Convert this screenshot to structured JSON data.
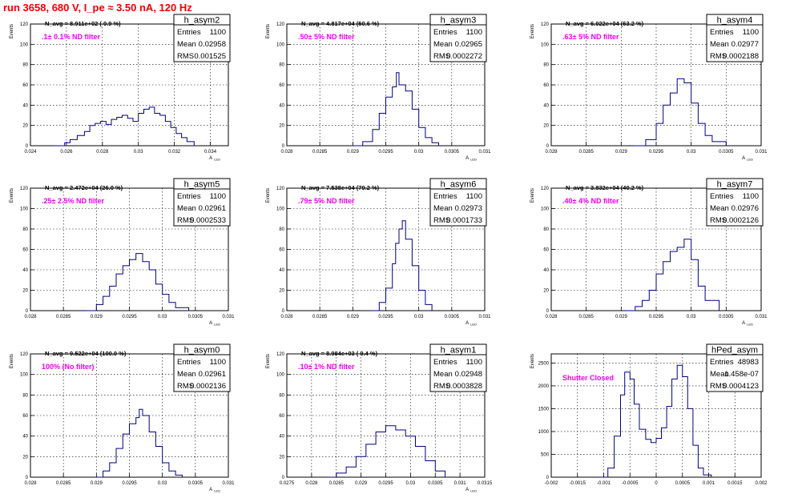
{
  "run_title": "run 3658,   680 V, I_pe ≈ 3.50 nA, 120 Hz",
  "stat_labels": {
    "entries": "Entries",
    "mean": "Mean",
    "rms": "RMS"
  },
  "chart_data": [
    {
      "type": "bar",
      "name": "h_asym2",
      "nline": "N_avg = 8.911e+02 ( 0.9 %)",
      "filter": ".1± 0.1% ND filter",
      "entries": "1100",
      "mean": "0.02958",
      "rms": "0.001525",
      "xlabel": "A_LED",
      "ylabel": "Events",
      "xlim": [
        0.024,
        0.035
      ],
      "ylim": [
        0,
        120
      ],
      "xticks": [
        0.024,
        0.026,
        0.028,
        0.03,
        0.032,
        0.034
      ],
      "xticklabels": [
        "0.024",
        "0.026",
        "0.028",
        "0.03",
        "0.032",
        "0.034"
      ],
      "yticks": [
        0,
        20,
        40,
        60,
        80,
        100,
        120
      ],
      "yticklabels": [
        "0",
        "20",
        "40",
        "60",
        "80",
        "100",
        "120"
      ],
      "x_points": [
        0.0253,
        0.0259,
        0.0262,
        0.0266,
        0.027,
        0.0273,
        0.0276,
        0.0279,
        0.0282,
        0.0285,
        0.0288,
        0.0291,
        0.0294,
        0.0297,
        0.03,
        0.0303,
        0.0306,
        0.0309,
        0.0312,
        0.0315,
        0.0318,
        0.0321,
        0.0324,
        0.0327,
        0.0331
      ],
      "y_points": [
        0,
        3,
        6,
        10,
        14,
        20,
        22,
        24,
        21,
        26,
        28,
        30,
        27,
        24,
        32,
        36,
        38,
        32,
        30,
        24,
        18,
        12,
        8,
        4,
        0
      ]
    },
    {
      "type": "bar",
      "name": "h_asym3",
      "nline": "N_avg = 4.817e+04 (50.6 %)",
      "filter": ".50± 5% ND filter",
      "entries": "1100",
      "mean": "0.02965",
      "rms": "0.0002272",
      "xlabel": "A_LED",
      "ylabel": "Events",
      "xlim": [
        0.028,
        0.031
      ],
      "ylim": [
        0,
        120
      ],
      "xticks": [
        0.028,
        0.0285,
        0.029,
        0.0295,
        0.03,
        0.0305,
        0.031
      ],
      "xticklabels": [
        "0.028",
        "0.0285",
        "0.029",
        "0.0295",
        "0.03",
        "0.0305",
        "0.031"
      ],
      "yticks": [
        0,
        20,
        40,
        60,
        80,
        100,
        120
      ],
      "yticklabels": [
        "0",
        "20",
        "40",
        "60",
        "80",
        "100",
        "120"
      ],
      "x_points": [
        0.02898,
        0.02915,
        0.0293,
        0.0294,
        0.0295,
        0.0296,
        0.02966,
        0.0297,
        0.0298,
        0.0299,
        0.03,
        0.0301,
        0.0302,
        0.0303
      ],
      "y_points": [
        0,
        4,
        16,
        32,
        48,
        58,
        72,
        60,
        54,
        36,
        18,
        8,
        3,
        0
      ]
    },
    {
      "type": "bar",
      "name": "h_asym4",
      "nline": "N_avg = 6.022e+04 (63.2 %)",
      "filter": ".63± 5% ND filter",
      "entries": "1100",
      "mean": "0.02977",
      "rms": "0.0002188",
      "xlabel": "A_LED",
      "ylabel": "Events",
      "xlim": [
        0.028,
        0.031
      ],
      "ylim": [
        0,
        120
      ],
      "xticks": [
        0.028,
        0.0285,
        0.029,
        0.0295,
        0.03,
        0.0305,
        0.031
      ],
      "xticklabels": [
        "0.028",
        "0.0285",
        "0.029",
        "0.0295",
        "0.03",
        "0.0305",
        "0.031"
      ],
      "yticks": [
        0,
        20,
        40,
        60,
        80,
        100,
        120
      ],
      "yticklabels": [
        "0",
        "20",
        "40",
        "60",
        "80",
        "100",
        "120"
      ],
      "x_points": [
        0.02918,
        0.02935,
        0.0295,
        0.0296,
        0.0297,
        0.0298,
        0.0299,
        0.03,
        0.0301,
        0.0302,
        0.0303,
        0.0305
      ],
      "y_points": [
        0,
        6,
        22,
        40,
        52,
        66,
        62,
        42,
        22,
        10,
        4,
        0
      ]
    },
    {
      "type": "bar",
      "name": "h_asym5",
      "nline": "N_avg = 2.472e+04 (26.0 %)",
      "filter": ".25± 2.5% ND filter",
      "entries": "1100",
      "mean": "0.02961",
      "rms": "0.0002533",
      "xlabel": "A_LED",
      "ylabel": "Events",
      "xlim": [
        0.028,
        0.031
      ],
      "ylim": [
        0,
        120
      ],
      "xticks": [
        0.028,
        0.0285,
        0.029,
        0.0295,
        0.03,
        0.0305,
        0.031
      ],
      "xticklabels": [
        "0.028",
        "0.0285",
        "0.029",
        "0.0295",
        "0.03",
        "0.0305",
        "0.031"
      ],
      "yticks": [
        0,
        20,
        40,
        60,
        80,
        100,
        120
      ],
      "yticklabels": [
        "0",
        "20",
        "40",
        "60",
        "80",
        "100",
        "120"
      ],
      "x_points": [
        0.02885,
        0.029,
        0.0291,
        0.0292,
        0.0293,
        0.0294,
        0.0295,
        0.0296,
        0.0297,
        0.0298,
        0.0299,
        0.03,
        0.0301,
        0.0302,
        0.0304
      ],
      "y_points": [
        0,
        6,
        14,
        24,
        36,
        44,
        50,
        56,
        48,
        40,
        26,
        16,
        8,
        3,
        0
      ]
    },
    {
      "type": "bar",
      "name": "h_asym6",
      "nline": "N_avg = 7.538e+04 (79.2 %)",
      "filter": ".79± 5% ND filter",
      "entries": "1100",
      "mean": "0.02973",
      "rms": "0.0001733",
      "xlabel": "A_LED",
      "ylabel": "Events",
      "xlim": [
        0.028,
        0.031
      ],
      "ylim": [
        0,
        120
      ],
      "xticks": [
        0.028,
        0.0285,
        0.029,
        0.0295,
        0.03,
        0.0305,
        0.031
      ],
      "xticklabels": [
        "0.028",
        "0.0285",
        "0.029",
        "0.0295",
        "0.03",
        "0.0305",
        "0.031"
      ],
      "yticks": [
        0,
        20,
        40,
        60,
        80,
        100,
        120
      ],
      "yticklabels": [
        "0",
        "20",
        "40",
        "60",
        "80",
        "100",
        "120"
      ],
      "x_points": [
        0.02928,
        0.0294,
        0.0295,
        0.0296,
        0.02965,
        0.0297,
        0.02975,
        0.0298,
        0.0299,
        0.03,
        0.0301,
        0.0302
      ],
      "y_points": [
        0,
        8,
        22,
        46,
        66,
        80,
        88,
        70,
        44,
        20,
        6,
        0
      ]
    },
    {
      "type": "bar",
      "name": "h_asym7",
      "nline": "N_avg = 3.832e+04 (40.2 %)",
      "filter": ".40± 4% ND filter",
      "entries": "1100",
      "mean": "0.02976",
      "rms": "0.0002126",
      "xlabel": "A_LED",
      "ylabel": "Events",
      "xlim": [
        0.028,
        0.031
      ],
      "ylim": [
        0,
        120
      ],
      "xticks": [
        0.028,
        0.0285,
        0.029,
        0.0295,
        0.03,
        0.0305,
        0.031
      ],
      "xticklabels": [
        "0.028",
        "0.0285",
        "0.029",
        "0.0295",
        "0.03",
        "0.0305",
        "0.031"
      ],
      "yticks": [
        0,
        20,
        40,
        60,
        80,
        100,
        120
      ],
      "yticklabels": [
        "0",
        "20",
        "40",
        "60",
        "80",
        "100",
        "120"
      ],
      "x_points": [
        0.02908,
        0.0292,
        0.0293,
        0.0294,
        0.0295,
        0.0296,
        0.0297,
        0.0298,
        0.0299,
        0.03,
        0.0301,
        0.0302,
        0.0304
      ],
      "y_points": [
        0,
        4,
        10,
        20,
        36,
        48,
        58,
        62,
        70,
        50,
        24,
        10,
        0
      ]
    },
    {
      "type": "bar",
      "name": "h_asym0",
      "nline": "N_avg = 9.522e+04 (100.0 %)",
      "filter": "100% (No filter)",
      "entries": "1100",
      "mean": "0.02961",
      "rms": "0.0002136",
      "xlabel": "A_LED",
      "ylabel": "Events",
      "xlim": [
        0.028,
        0.031
      ],
      "ylim": [
        0,
        120
      ],
      "xticks": [
        0.028,
        0.0285,
        0.029,
        0.0295,
        0.03,
        0.0305,
        0.031
      ],
      "xticklabels": [
        "0.028",
        "0.0285",
        "0.029",
        "0.0295",
        "0.03",
        "0.0305",
        "0.031"
      ],
      "yticks": [
        0,
        20,
        40,
        60,
        80,
        100,
        120
      ],
      "yticklabels": [
        "0",
        "20",
        "40",
        "60",
        "80",
        "100",
        "120"
      ],
      "x_points": [
        0.02898,
        0.0291,
        0.0292,
        0.0293,
        0.0294,
        0.0295,
        0.0296,
        0.02965,
        0.0297,
        0.0298,
        0.0299,
        0.03,
        0.0301,
        0.0302,
        0.0303
      ],
      "y_points": [
        0,
        6,
        14,
        28,
        42,
        52,
        58,
        66,
        60,
        44,
        30,
        14,
        6,
        2,
        0
      ]
    },
    {
      "type": "bar",
      "name": "h_asym1",
      "nline": "N_avg = 8.984e+03 ( 9.4 %)",
      "filter": ".10± 1% ND filter",
      "entries": "1100",
      "mean": "0.02948",
      "rms": "0.0003828",
      "xlabel": "A_LED",
      "ylabel": "Events",
      "xlim": [
        0.0275,
        0.0315
      ],
      "ylim": [
        0,
        120
      ],
      "xticks": [
        0.0275,
        0.028,
        0.0285,
        0.029,
        0.0295,
        0.03,
        0.0305,
        0.031,
        0.0315
      ],
      "xticklabels": [
        "0.0275",
        "0.028",
        "0.0285",
        "0.029",
        "0.0295",
        "0.03",
        "0.0305",
        "0.031",
        "0.0315"
      ],
      "yticks": [
        0,
        20,
        40,
        60,
        80,
        100,
        120
      ],
      "yticklabels": [
        "0",
        "20",
        "40",
        "60",
        "80",
        "100",
        "120"
      ],
      "x_points": [
        0.02835,
        0.0285,
        0.0287,
        0.0289,
        0.0291,
        0.0293,
        0.0295,
        0.0297,
        0.0299,
        0.0301,
        0.0303,
        0.0305,
        0.0307
      ],
      "y_points": [
        0,
        4,
        10,
        20,
        32,
        44,
        50,
        46,
        40,
        30,
        16,
        6,
        0
      ]
    },
    {
      "type": "bar",
      "name": "hPed_asym",
      "nline": "",
      "filter": "Shutter Closed",
      "entries": "48983",
      "mean": "1.458e-07",
      "rms": "0.0004123",
      "xlabel": "",
      "ylabel": "Events",
      "xlim": [
        -0.002,
        0.002
      ],
      "ylim": [
        0,
        2700
      ],
      "xticks": [
        -0.002,
        -0.0015,
        -0.001,
        -0.0005,
        0,
        0.0005,
        0.001,
        0.0015,
        0.002
      ],
      "xticklabels": [
        "-0.002",
        "-0.0015",
        "-0.001",
        "-0.0005",
        "0",
        "0.0005",
        "0.001",
        "0.0015",
        "0.002"
      ],
      "yticks": [
        0,
        500,
        1000,
        1500,
        2000,
        2500
      ],
      "yticklabels": [
        "0",
        "500",
        "1000",
        "1500",
        "2000",
        "2500"
      ],
      "x_points": [
        -0.00105,
        -0.00092,
        -0.0008,
        -0.00068,
        -0.0006,
        -0.0005,
        -0.00042,
        -0.00032,
        -0.0002,
        -0.0001,
        0,
        0.0001,
        0.0002,
        0.0003,
        0.0004,
        0.0005,
        0.0006,
        0.0007,
        0.0008,
        0.0009,
        0.00105
      ],
      "y_points": [
        0,
        200,
        900,
        1800,
        2300,
        2150,
        1600,
        1050,
        830,
        760,
        850,
        1080,
        1550,
        2150,
        2450,
        2200,
        1500,
        700,
        200,
        50,
        0
      ]
    }
  ]
}
